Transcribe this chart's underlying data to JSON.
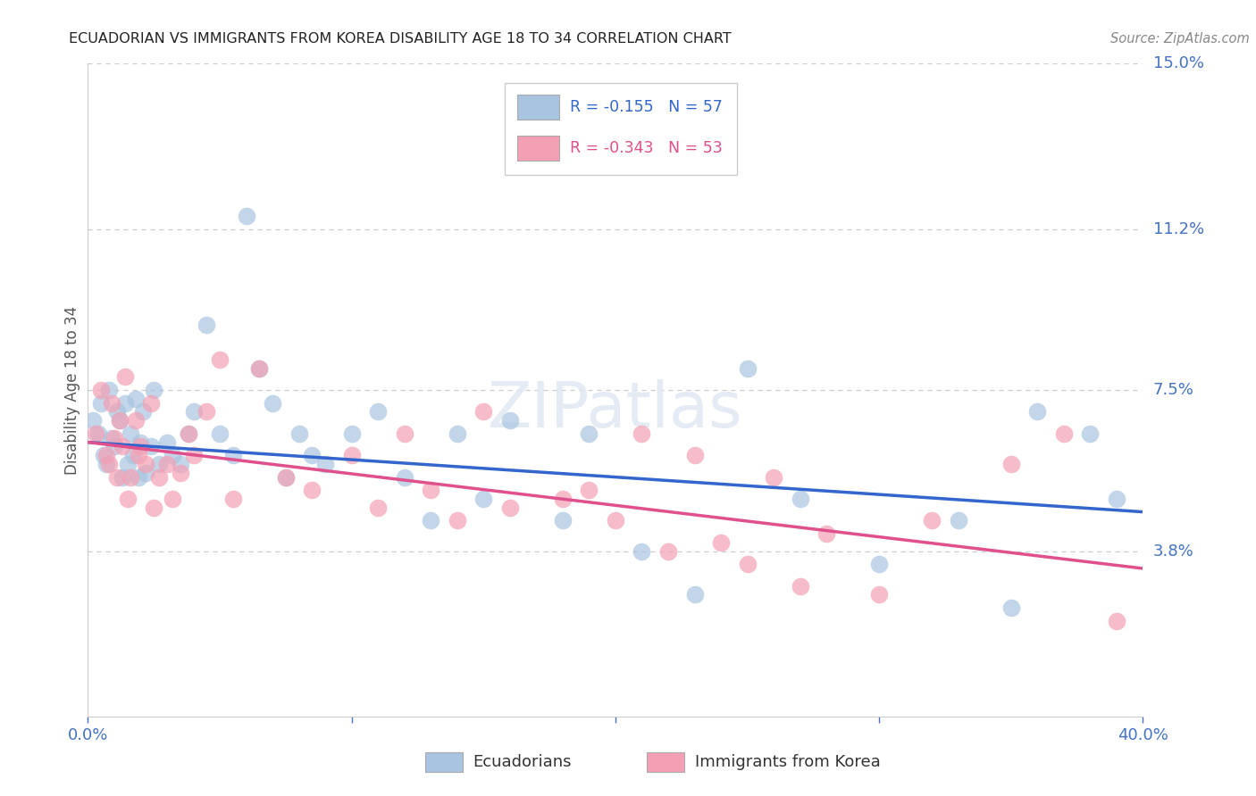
{
  "title": "ECUADORIAN VS IMMIGRANTS FROM KOREA DISABILITY AGE 18 TO 34 CORRELATION CHART",
  "source": "Source: ZipAtlas.com",
  "ylabel": "Disability Age 18 to 34",
  "xlim": [
    0.0,
    0.4
  ],
  "ylim": [
    0.0,
    0.15
  ],
  "xticks": [
    0.0,
    0.1,
    0.2,
    0.3,
    0.4
  ],
  "xtick_labels": [
    "0.0%",
    "",
    "",
    "",
    "40.0%"
  ],
  "ytick_labels_right": [
    "15.0%",
    "11.2%",
    "7.5%",
    "3.8%"
  ],
  "ytick_positions_right": [
    0.15,
    0.112,
    0.075,
    0.038
  ],
  "blue_R": "-0.155",
  "blue_N": "57",
  "pink_R": "-0.343",
  "pink_N": "53",
  "blue_color": "#a8c4e0",
  "pink_color": "#f4a0b4",
  "blue_line_color": "#3366cc",
  "pink_line_color": "#e0508c",
  "background_color": "#ffffff",
  "grid_color": "#cccccc",
  "blue_scatter_x": [
    0.002,
    0.004,
    0.005,
    0.006,
    0.007,
    0.008,
    0.009,
    0.01,
    0.011,
    0.012,
    0.013,
    0.014,
    0.015,
    0.016,
    0.017,
    0.018,
    0.019,
    0.02,
    0.021,
    0.022,
    0.024,
    0.025,
    0.027,
    0.03,
    0.032,
    0.035,
    0.038,
    0.04,
    0.045,
    0.05,
    0.055,
    0.06,
    0.065,
    0.07,
    0.075,
    0.08,
    0.085,
    0.09,
    0.1,
    0.11,
    0.12,
    0.13,
    0.14,
    0.15,
    0.16,
    0.18,
    0.19,
    0.21,
    0.23,
    0.25,
    0.27,
    0.3,
    0.33,
    0.35,
    0.36,
    0.38,
    0.39
  ],
  "blue_scatter_y": [
    0.068,
    0.065,
    0.072,
    0.06,
    0.058,
    0.075,
    0.064,
    0.062,
    0.07,
    0.068,
    0.055,
    0.072,
    0.058,
    0.065,
    0.06,
    0.073,
    0.055,
    0.063,
    0.07,
    0.056,
    0.062,
    0.075,
    0.058,
    0.063,
    0.06,
    0.058,
    0.065,
    0.07,
    0.09,
    0.065,
    0.06,
    0.115,
    0.08,
    0.072,
    0.055,
    0.065,
    0.06,
    0.058,
    0.065,
    0.07,
    0.055,
    0.045,
    0.065,
    0.05,
    0.068,
    0.045,
    0.065,
    0.038,
    0.028,
    0.08,
    0.05,
    0.035,
    0.045,
    0.025,
    0.07,
    0.065,
    0.05
  ],
  "pink_scatter_x": [
    0.003,
    0.005,
    0.007,
    0.008,
    0.009,
    0.01,
    0.011,
    0.012,
    0.013,
    0.014,
    0.015,
    0.016,
    0.018,
    0.019,
    0.02,
    0.022,
    0.024,
    0.025,
    0.027,
    0.03,
    0.032,
    0.035,
    0.038,
    0.04,
    0.045,
    0.05,
    0.055,
    0.065,
    0.075,
    0.085,
    0.1,
    0.11,
    0.12,
    0.13,
    0.14,
    0.15,
    0.16,
    0.18,
    0.19,
    0.2,
    0.21,
    0.22,
    0.23,
    0.24,
    0.25,
    0.26,
    0.27,
    0.28,
    0.3,
    0.32,
    0.35,
    0.37,
    0.39
  ],
  "pink_scatter_y": [
    0.065,
    0.075,
    0.06,
    0.058,
    0.072,
    0.064,
    0.055,
    0.068,
    0.062,
    0.078,
    0.05,
    0.055,
    0.068,
    0.06,
    0.062,
    0.058,
    0.072,
    0.048,
    0.055,
    0.058,
    0.05,
    0.056,
    0.065,
    0.06,
    0.07,
    0.082,
    0.05,
    0.08,
    0.055,
    0.052,
    0.06,
    0.048,
    0.065,
    0.052,
    0.045,
    0.07,
    0.048,
    0.05,
    0.052,
    0.045,
    0.065,
    0.038,
    0.06,
    0.04,
    0.035,
    0.055,
    0.03,
    0.042,
    0.028,
    0.045,
    0.058,
    0.065,
    0.022
  ],
  "blue_line_x": [
    0.0,
    0.4
  ],
  "blue_line_y": [
    0.063,
    0.047
  ],
  "pink_line_x": [
    0.0,
    0.4
  ],
  "pink_line_y": [
    0.063,
    0.034
  ]
}
